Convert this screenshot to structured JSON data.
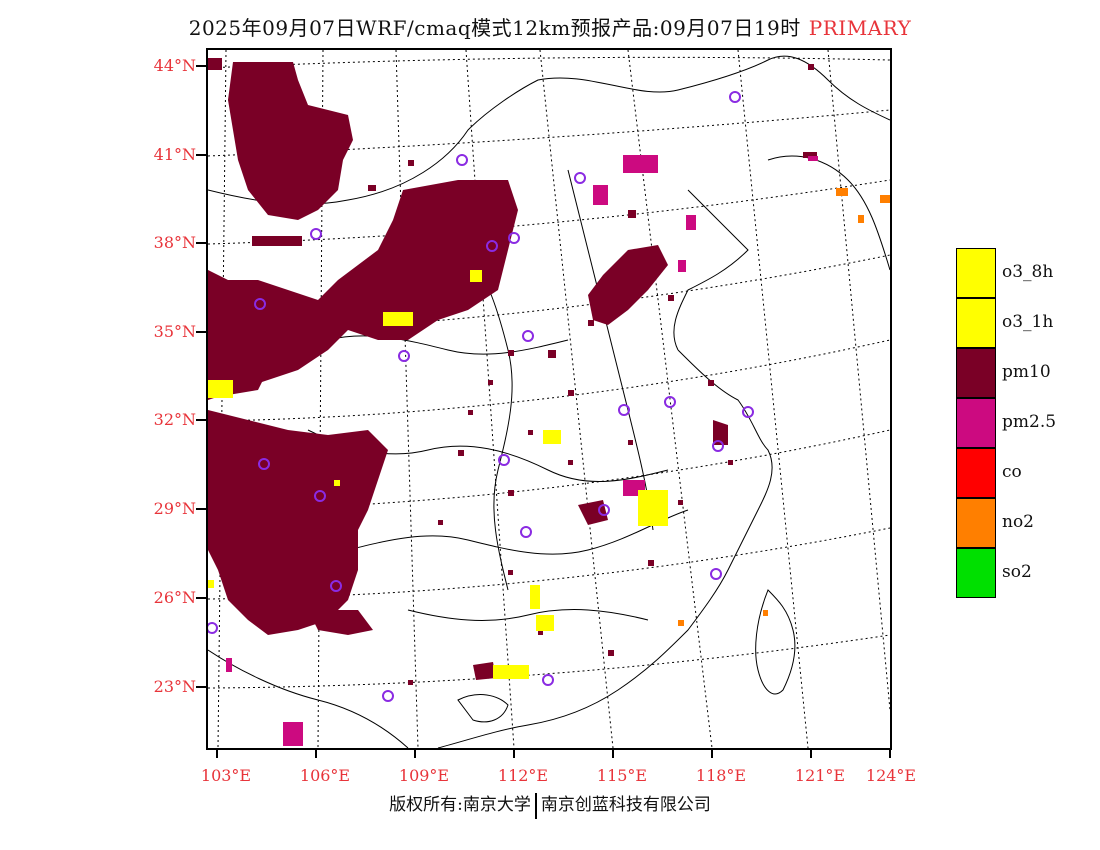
{
  "title": {
    "main": "2025年09月07日WRF/cmaq模式12km预报产品:09月07日19时",
    "tag": "PRIMARY"
  },
  "axes": {
    "lat_labels": [
      "44°N",
      "41°N",
      "38°N",
      "35°N",
      "32°N",
      "29°N",
      "26°N",
      "23°N"
    ],
    "lon_labels": [
      "103°E",
      "106°E",
      "109°E",
      "112°E",
      "115°E",
      "118°E",
      "121°E",
      "124°E"
    ]
  },
  "colors": {
    "pm10": "#7a0026",
    "pm25": "#cc0a80",
    "o3": "#ffff00",
    "co": "#ff0000",
    "no2": "#ff7f00",
    "so2": "#00e000",
    "station": "#8a2be2",
    "label": "#e8343a"
  },
  "legend": [
    {
      "label": "o3_8h",
      "color": "#ffff00"
    },
    {
      "label": "o3_1h",
      "color": "#ffff00"
    },
    {
      "label": "pm10",
      "color": "#7a0026"
    },
    {
      "label": "pm2.5",
      "color": "#cc0a80"
    },
    {
      "label": "co",
      "color": "#ff0000"
    },
    {
      "label": "no2",
      "color": "#ff7f00"
    },
    {
      "label": "so2",
      "color": "#00e000"
    }
  ],
  "footer": {
    "left": "版权所有:南京大学",
    "right": "南京创蓝科技有限公司"
  }
}
